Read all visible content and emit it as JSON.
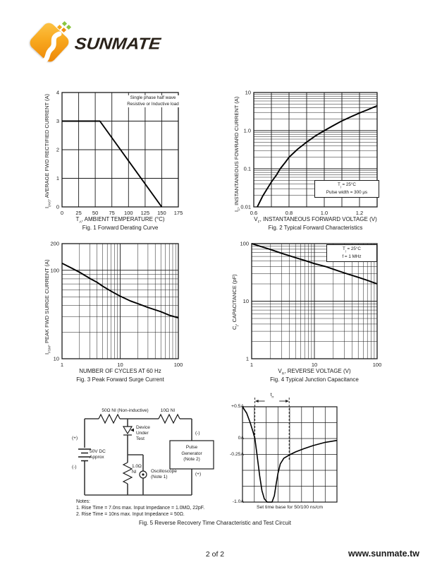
{
  "logo": {
    "brand": "SUNMATE",
    "accent_color": "#f29111",
    "dot_green": "#8bc53f",
    "dot_orange": "#f5a81c"
  },
  "footer": {
    "page": "2 of 2",
    "website": "www.sunmate.tw"
  },
  "fig5_caption": "Fig. 5  Reverse Recovery Time Characteristic and Test Circuit",
  "circuit": {
    "labels": {
      "r1": "50Ω NI (Non-inductive)",
      "r2": "10Ω NI",
      "dut": [
        "Device",
        "Under",
        "Test"
      ],
      "battery_plus": "(+)",
      "battery_minus": "(-)",
      "battery": [
        "50V DC",
        "Approx"
      ],
      "r3": [
        "1.0Ω",
        "NI"
      ],
      "scope": [
        "Oscilloscope",
        "(Note 1)"
      ],
      "pulse_gen": [
        "Pulse",
        "Generator",
        "(Note 2)"
      ],
      "pg_minus": "(-)",
      "pg_plus": "(+)"
    },
    "notes": [
      "Notes:",
      "1. Rise Time = 7.0ns max. Input Impedance = 1.0MΩ, 22pF.",
      "2. Rise Time = 10ns max. Input Impedance = 50Ω."
    ]
  },
  "chart_data": [
    {
      "id": "fig1",
      "type": "line",
      "title": "Fig. 1  Forward Derating Curve",
      "xlabel": {
        "pre": "T",
        "sub": "A",
        "rest": ", AMBIENT TEMPERATURE (°C)"
      },
      "ylabel": {
        "pre": "I",
        "sub": "(AV)",
        "rest": ", AVERAGE FWD RECTIFIED CURRENT (A)"
      },
      "x": {
        "scale": "linear",
        "min": 0,
        "max": 175,
        "grid_step": 25,
        "ticks": [
          {
            "v": 0,
            "l": "0"
          },
          {
            "v": 25,
            "l": "25"
          },
          {
            "v": 50,
            "l": "50"
          },
          {
            "v": 75,
            "l": "75"
          },
          {
            "v": 100,
            "l": "100"
          },
          {
            "v": 125,
            "l": "125"
          },
          {
            "v": 150,
            "l": "150"
          },
          {
            "v": 175,
            "l": "175"
          }
        ]
      },
      "y": {
        "scale": "linear",
        "min": 0,
        "max": 4,
        "grid_step": 1,
        "ticks": [
          {
            "v": 0,
            "l": "0"
          },
          {
            "v": 1,
            "l": "1"
          },
          {
            "v": 2,
            "l": "2"
          },
          {
            "v": 3,
            "l": "3"
          },
          {
            "v": 4,
            "l": "4"
          }
        ]
      },
      "series": [
        {
          "name": "derating-curve",
          "points": [
            [
              0,
              3
            ],
            [
              57,
              3
            ],
            [
              150,
              0
            ]
          ]
        }
      ],
      "annotation": {
        "boxed": false,
        "line1": "Single phase half wave",
        "line2": "Resistive or Inductive load"
      }
    },
    {
      "id": "fig2",
      "type": "line",
      "title": "Fig. 2  Typical Forward Characteristics",
      "xlabel": {
        "pre": "V",
        "sub": "F",
        "rest": ", INSTANTANEOUS FORWARD VOLTAGE (V)"
      },
      "ylabel": {
        "pre": "I",
        "sub": "F",
        "rest": ", INSTANTANEOUS FOWRARD CURRENT (A)"
      },
      "x": {
        "scale": "linear",
        "min": 0.6,
        "max": 1.3,
        "grid_step": 0.1,
        "ticks": [
          {
            "v": 0.6,
            "l": "0.6"
          },
          {
            "v": 0.8,
            "l": "0.8"
          },
          {
            "v": 1.0,
            "l": "1.0"
          },
          {
            "v": 1.2,
            "l": "1.2"
          }
        ]
      },
      "y": {
        "scale": "log",
        "min": 0.01,
        "max": 10,
        "ticks": [
          {
            "v": 10,
            "l": "10"
          },
          {
            "v": 1,
            "l": "1.0"
          },
          {
            "v": 0.1,
            "l": "0.1"
          },
          {
            "v": 0.01,
            "l": "0.01"
          }
        ]
      },
      "series": [
        {
          "name": "forward-characteristic",
          "points": [
            [
              0.62,
              0.01
            ],
            [
              0.65,
              0.019
            ],
            [
              0.68,
              0.032
            ],
            [
              0.7,
              0.045
            ],
            [
              0.73,
              0.07
            ],
            [
              0.75,
              0.1
            ],
            [
              0.78,
              0.15
            ],
            [
              0.8,
              0.2
            ],
            [
              0.85,
              0.33
            ],
            [
              0.9,
              0.5
            ],
            [
              0.95,
              0.73
            ],
            [
              1.0,
              1.0
            ],
            [
              1.05,
              1.35
            ],
            [
              1.1,
              1.8
            ],
            [
              1.15,
              2.3
            ],
            [
              1.2,
              2.9
            ],
            [
              1.25,
              3.6
            ],
            [
              1.3,
              4.5
            ]
          ]
        }
      ],
      "annotation": {
        "boxed": true,
        "pre": "T",
        "sub": "j",
        "rest": " = 25°C",
        "line2": "Pulse width = 300 μs"
      }
    },
    {
      "id": "fig3",
      "type": "line",
      "title": "Fig. 3  Peak Forward Surge Current",
      "xlabel": {
        "pre": "",
        "sub": "",
        "rest": "NUMBER OF CYCLES AT 60 Hz"
      },
      "ylabel": {
        "pre": "I",
        "sub": "FSM",
        "rest": ", PEAK FWD SURGE CURRENT (A)"
      },
      "x": {
        "scale": "log",
        "min": 1,
        "max": 100,
        "ticks": [
          {
            "v": 1,
            "l": "1"
          },
          {
            "v": 10,
            "l": "10"
          },
          {
            "v": 100,
            "l": "100"
          }
        ]
      },
      "y": {
        "scale": "log",
        "min": 10,
        "max": 200,
        "ticks": [
          {
            "v": 200,
            "l": "200"
          },
          {
            "v": 100,
            "l": "100"
          },
          {
            "v": 10,
            "l": "10"
          }
        ]
      },
      "series": [
        {
          "name": "surge-current",
          "points": [
            [
              1,
              120
            ],
            [
              1.5,
              105
            ],
            [
              2,
              95
            ],
            [
              3,
              81
            ],
            [
              4,
              73
            ],
            [
              5,
              66
            ],
            [
              7,
              58
            ],
            [
              10,
              51
            ],
            [
              15,
              45
            ],
            [
              20,
              42
            ],
            [
              30,
              38
            ],
            [
              50,
              34
            ],
            [
              70,
              31
            ],
            [
              100,
              29
            ]
          ]
        }
      ]
    },
    {
      "id": "fig4",
      "type": "line",
      "title": "Fig. 4  Typical Junction Capacitance",
      "xlabel": {
        "pre": "V",
        "sub": "R",
        "rest": ", REVERSE VOLTAGE (V)"
      },
      "ylabel": {
        "pre": "C",
        "sub": "j",
        "rest": ", CAPACITANCE (pF)"
      },
      "x": {
        "scale": "log",
        "min": 1,
        "max": 100,
        "ticks": [
          {
            "v": 1,
            "l": "1"
          },
          {
            "v": 10,
            "l": "10"
          },
          {
            "v": 100,
            "l": "100"
          }
        ]
      },
      "y": {
        "scale": "log",
        "min": 1,
        "max": 100,
        "ticks": [
          {
            "v": 100,
            "l": "100"
          },
          {
            "v": 10,
            "l": "10"
          },
          {
            "v": 1,
            "l": "1"
          }
        ]
      },
      "series": [
        {
          "name": "junction-capacitance",
          "points": [
            [
              1,
              100
            ],
            [
              2,
              79
            ],
            [
              3,
              68
            ],
            [
              5,
              57
            ],
            [
              7,
              51
            ],
            [
              10,
              45
            ],
            [
              15,
              40
            ],
            [
              20,
              36
            ],
            [
              30,
              31
            ],
            [
              50,
              26
            ],
            [
              70,
              23
            ],
            [
              100,
              20
            ]
          ]
        }
      ],
      "annotation": {
        "boxed": true,
        "pre": "T",
        "sub": "j",
        "rest": " = 25°C",
        "line2": "f = 1 MHz"
      }
    },
    {
      "id": "fig5-waveform",
      "type": "line",
      "title": "Set time base for 50/100 ns/cm",
      "x": {
        "scale": "linear",
        "min": 0,
        "max": 8,
        "grid_step": 1,
        "unit": "cm"
      },
      "y": {
        "scale": "linear",
        "min": -1.0,
        "max": 0.5,
        "grid_step": 0.25,
        "labels": [
          {
            "v": 0.5,
            "l": "+0.5A"
          },
          {
            "v": 0,
            "l": "0A"
          },
          {
            "v": -0.25,
            "l": "-0.25A"
          },
          {
            "v": -1.0,
            "l": "-1.0A"
          }
        ]
      },
      "marker": {
        "pre": "t",
        "sub": "rr",
        "x1": 1.05,
        "x2": 3.95
      },
      "series": [
        {
          "name": "reverse-recovery-current",
          "points": [
            [
              0,
              0.5
            ],
            [
              0.35,
              0.4
            ],
            [
              0.65,
              0.25
            ],
            [
              0.9,
              0.1
            ],
            [
              1.05,
              0
            ],
            [
              1.25,
              -0.28
            ],
            [
              1.45,
              -0.58
            ],
            [
              1.65,
              -0.82
            ],
            [
              1.85,
              -0.95
            ],
            [
              2.1,
              -1.0
            ],
            [
              2.5,
              -1.0
            ],
            [
              2.7,
              -0.9
            ],
            [
              2.85,
              -0.72
            ],
            [
              3.0,
              -0.55
            ],
            [
              3.2,
              -0.4
            ],
            [
              3.5,
              -0.31
            ],
            [
              3.95,
              -0.26
            ],
            [
              4.5,
              -0.21
            ],
            [
              5.2,
              -0.16
            ],
            [
              6.0,
              -0.11
            ],
            [
              7.0,
              -0.06
            ],
            [
              8.0,
              -0.03
            ]
          ]
        }
      ]
    }
  ]
}
